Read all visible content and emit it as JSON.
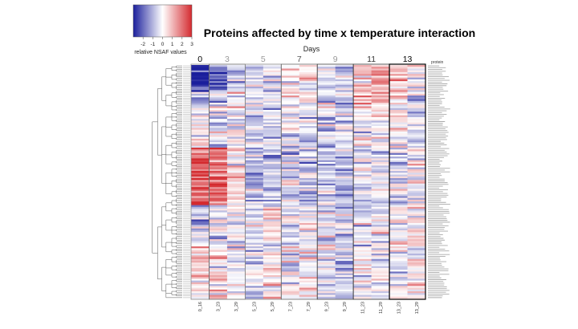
{
  "chart_data": {
    "type": "heatmap",
    "title": "Proteins affected by time x temperature interaction",
    "x_group_title": "Days",
    "day_labels": [
      "0",
      "3",
      "5",
      "7",
      "9",
      "11",
      "13"
    ],
    "column_labels": [
      "0_16",
      "3_23",
      "3_29",
      "5_23",
      "5_29",
      "7_23",
      "7_29",
      "9_23",
      "9_29",
      "11_23",
      "11_29",
      "13_23",
      "13_29"
    ],
    "column_day_group": [
      0,
      1,
      1,
      2,
      2,
      3,
      3,
      4,
      4,
      5,
      5,
      6,
      6
    ],
    "row_annotation_header": "protein",
    "row_count": 130,
    "value_range": [
      -3,
      3
    ],
    "colorbar": {
      "ticks": [
        "-2",
        "-1",
        "0",
        "1",
        "2",
        "3"
      ],
      "label": "relative NSAF values",
      "low_color": "#1b1f9c",
      "mid_color": "#ffffff",
      "high_color": "#d42a2f"
    },
    "dendrogram": "rows",
    "note": "Per-cell values are approximated: red = high, blue = low relative NSAF"
  }
}
